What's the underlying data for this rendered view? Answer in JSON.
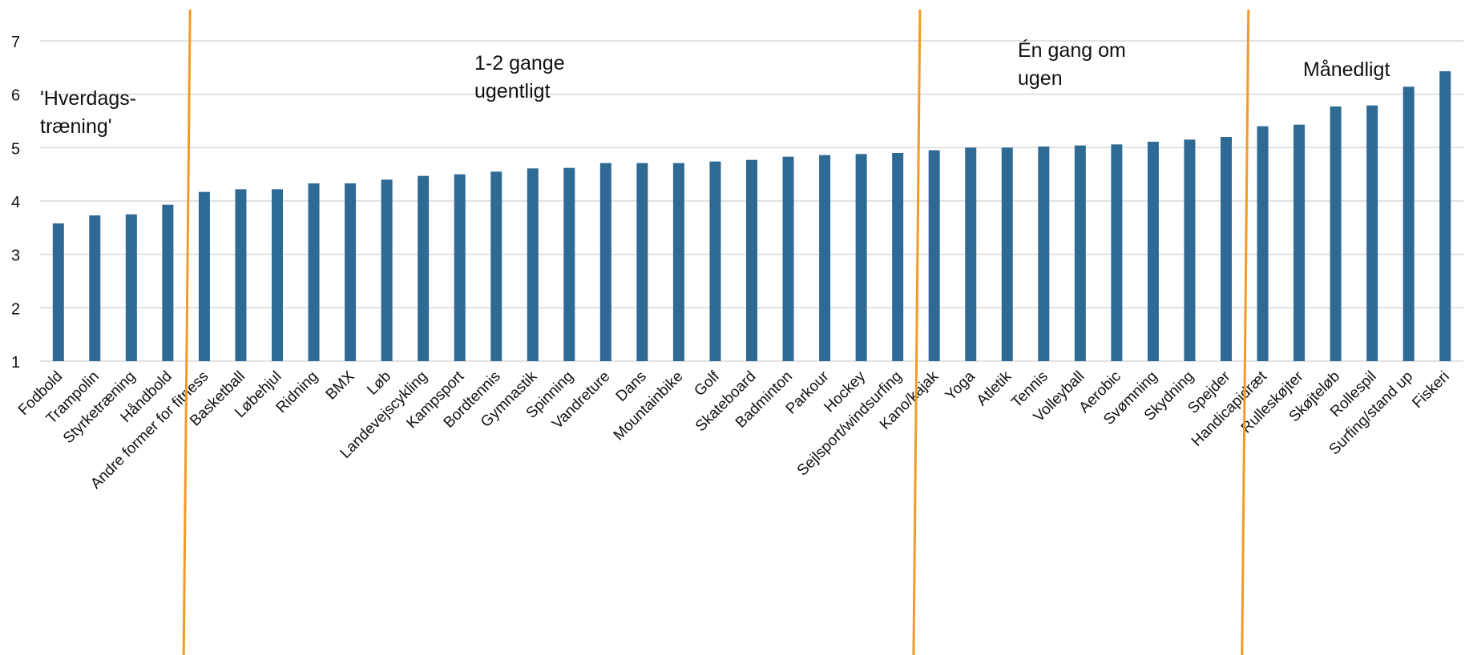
{
  "chart_data": {
    "type": "bar",
    "title": "",
    "xlabel": "",
    "ylabel": "",
    "ylim": [
      1,
      7
    ],
    "yticks": [
      "1",
      "2",
      "3",
      "4",
      "5",
      "6",
      "7"
    ],
    "grid": true,
    "bar_color": "#2e6a94",
    "divider_color": "#f29a28",
    "categories": [
      "Fodbold",
      "Trampolin",
      "Styrketræning",
      "Håndbold",
      "Andre former for fitness",
      "Basketball",
      "Løbehjul",
      "Ridning",
      "BMX",
      "Løb",
      "Landevejscykling",
      "Kampsport",
      "Bordtennis",
      "Gymnastik",
      "Spinning",
      "Vandreture",
      "Dans",
      "Mountainbike",
      "Golf",
      "Skateboard",
      "Badminton",
      "Parkour",
      "Hockey",
      "Sejlsport/windsurfing",
      "Kano/kajak",
      "Yoga",
      "Atletik",
      "Tennis",
      "Volleyball",
      "Aerobic",
      "Svømning",
      "Skydning",
      "Spejder",
      "Handicapidræt",
      "Rulleskøjter",
      "Skøjteløb",
      "Rollespil",
      "Surfing/stand up",
      "Fiskeri"
    ],
    "values": [
      3.58,
      3.73,
      3.75,
      3.93,
      4.17,
      4.22,
      4.22,
      4.33,
      4.33,
      4.4,
      4.47,
      4.5,
      4.55,
      4.61,
      4.62,
      4.71,
      4.71,
      4.71,
      4.74,
      4.77,
      4.83,
      4.86,
      4.88,
      4.9,
      4.95,
      5.0,
      5.0,
      5.02,
      5.04,
      5.06,
      5.11,
      5.15,
      5.2,
      5.4,
      5.43,
      5.77,
      5.79,
      6.14,
      6.43
    ],
    "dividers_after_index": [
      3,
      23,
      32
    ],
    "annotations": [
      "'Hverdags-\ntræning'",
      "1-2 gange\nugentligt",
      "Én gang om\nugen",
      "Månedligt"
    ]
  }
}
